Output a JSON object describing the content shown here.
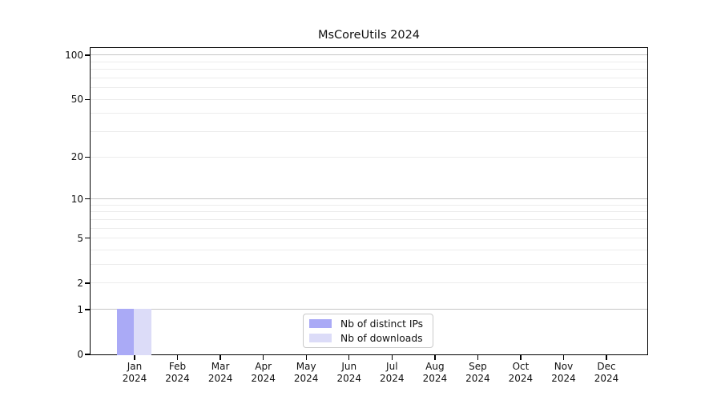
{
  "title": "MsCoreUtils 2024",
  "chart_data": {
    "type": "bar",
    "title": "MsCoreUtils 2024",
    "categories": [
      "Jan 2024",
      "Feb 2024",
      "Mar 2024",
      "Apr 2024",
      "May 2024",
      "Jun 2024",
      "Jul 2024",
      "Aug 2024",
      "Sep 2024",
      "Oct 2024",
      "Nov 2024",
      "Dec 2024"
    ],
    "series": [
      {
        "name": "Nb of distinct IPs",
        "color": "#aaaaf6",
        "values": [
          1,
          0,
          0,
          0,
          0,
          0,
          0,
          0,
          0,
          0,
          0,
          0
        ]
      },
      {
        "name": "Nb of downloads",
        "color": "#dcdcf8",
        "values": [
          1,
          0,
          0,
          0,
          0,
          0,
          0,
          0,
          0,
          0,
          0,
          0
        ]
      }
    ],
    "xlabel": "",
    "ylabel": "",
    "y_scale": "log1p",
    "ylim": [
      0,
      100
    ],
    "y_tick_values": [
      0,
      1,
      2,
      5,
      10,
      20,
      50,
      100
    ],
    "y_major_gridlines": [
      1,
      10,
      100
    ],
    "y_minor_gridlines": [
      2,
      3,
      4,
      5,
      6,
      7,
      8,
      9,
      20,
      30,
      40,
      50,
      60,
      70,
      80,
      90
    ],
    "grid": "horizontal",
    "legend_position": "bottom-center"
  },
  "colors": {
    "spine": "#000000",
    "major_grid": "#c6c6c6",
    "minor_grid": "#ececec",
    "text": "#111111",
    "legend_border": "#c9c9c9"
  }
}
